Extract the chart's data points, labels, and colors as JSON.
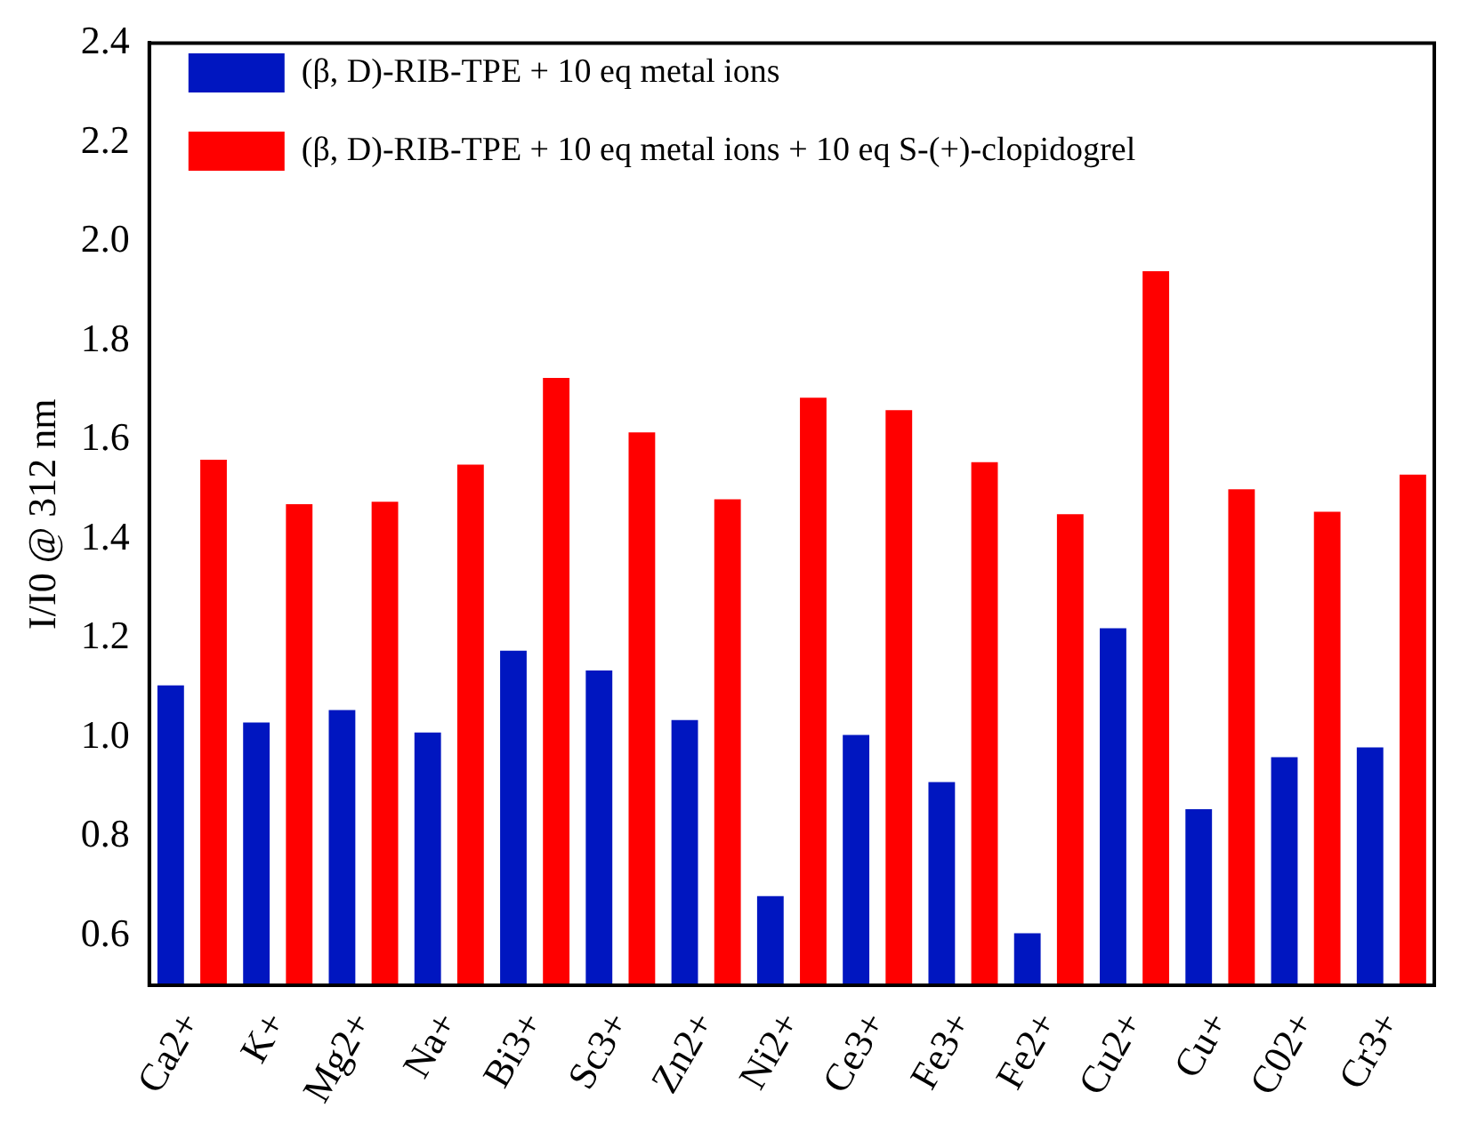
{
  "chart_data": {
    "type": "bar",
    "ylabel": "I/I0 @ 312 nm",
    "categories": [
      "Ca2+",
      "K+",
      "Mg2+",
      "Na+",
      "Bi3+",
      "Sc3+",
      "Zn2+",
      "Ni2+",
      "Ce3+",
      "Fe3+",
      "Fe2+",
      "Cu2+",
      "Cu+",
      "C02+",
      "Cr3+"
    ],
    "series": [
      {
        "name": "(β, D)-RIB-TPE + 10 eq metal ions",
        "color": "#0016c0",
        "values": [
          1.105,
          1.03,
          1.055,
          1.01,
          1.175,
          1.135,
          1.035,
          0.68,
          1.005,
          0.91,
          0.605,
          1.22,
          0.855,
          0.96,
          0.98
        ]
      },
      {
        "name": "(β, D)-RIB-TPE + 10 eq metal ions + 10 eq S-(+)-clopidogrel",
        "color": "#ff0000",
        "values": [
          1.56,
          1.47,
          1.475,
          1.55,
          1.725,
          1.615,
          1.48,
          1.685,
          1.66,
          1.555,
          1.45,
          1.94,
          1.5,
          1.455,
          1.53
        ]
      }
    ],
    "ylim": [
      0.5,
      2.4
    ],
    "yticks": [
      0.6,
      0.8,
      {
        "value": 1,
        "label": "1.0"
      },
      1.2,
      1.4,
      1.6,
      1.8,
      {
        "value": 2,
        "label": "2.0"
      },
      2.2,
      2.4
    ],
    "legend": "top left"
  }
}
